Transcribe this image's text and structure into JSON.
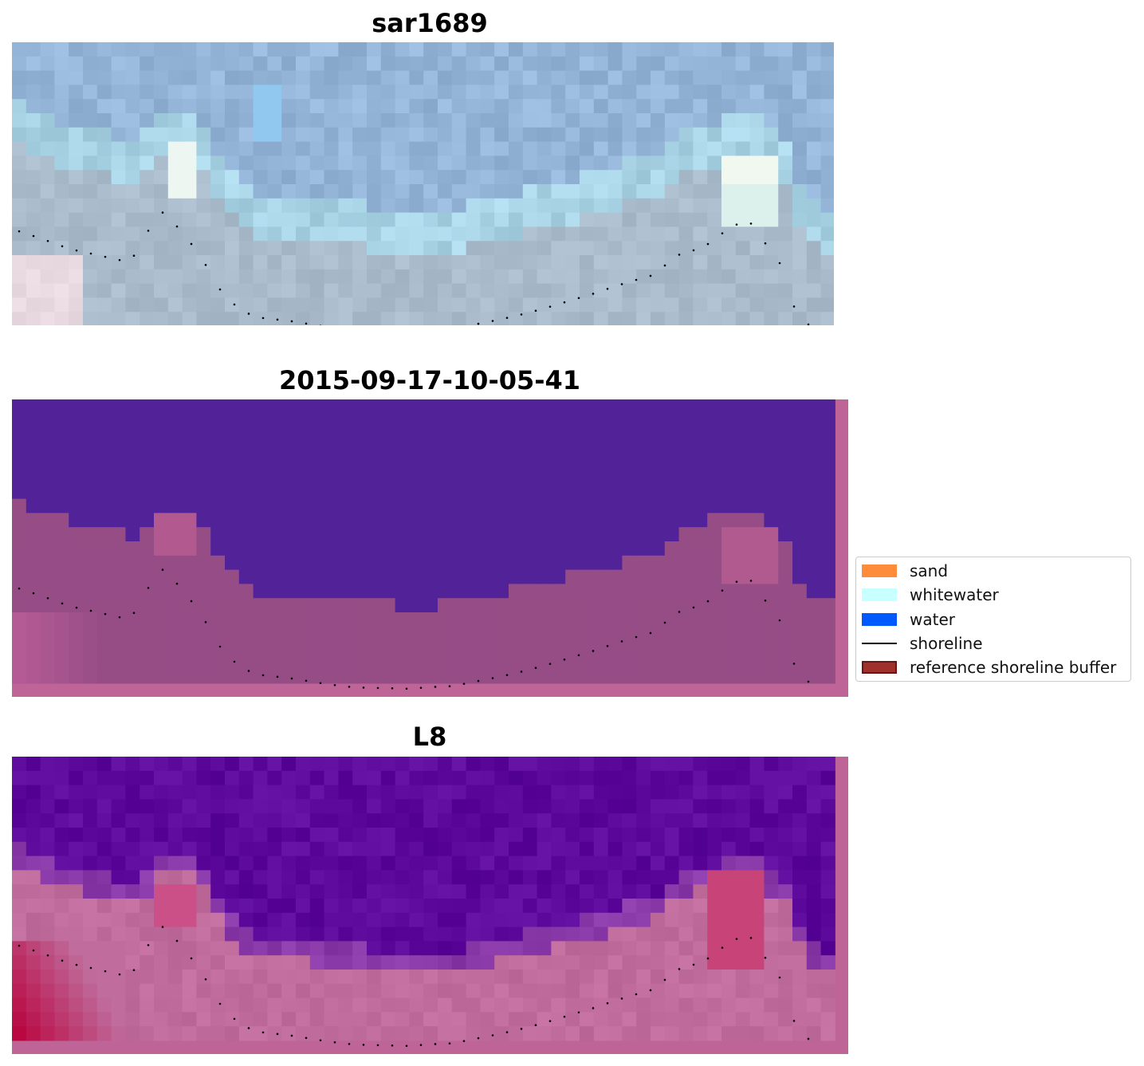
{
  "panels": [
    {
      "title": "sar1689"
    },
    {
      "title": "2015-09-17-10-05-41"
    },
    {
      "title": "L8"
    }
  ],
  "legend": {
    "items": [
      {
        "label": "sand",
        "color": "#ff8c3a",
        "kind": "patch"
      },
      {
        "label": "whitewater",
        "color": "#c8ffff",
        "kind": "patch"
      },
      {
        "label": "water",
        "color": "#0059ff",
        "kind": "patch"
      },
      {
        "label": "shoreline",
        "color": "#000000",
        "kind": "line"
      },
      {
        "label": "reference shoreline buffer",
        "color": "#a0302c",
        "kind": "patch"
      }
    ]
  },
  "colors": {
    "classification_water": "#522398",
    "classification_land": "#964d86",
    "frame_pink": "#be6497",
    "rgb_sky": "#94b4d8",
    "rgb_land": "#aabccc",
    "mndwi_water": "#5d0a9c",
    "mndwi_land": "#c06c9c"
  }
}
